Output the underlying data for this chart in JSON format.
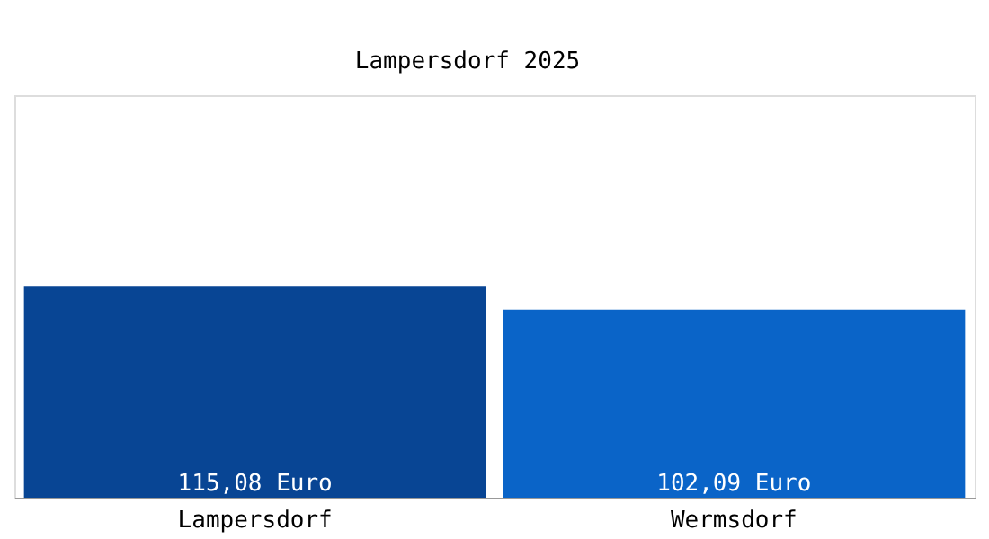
{
  "chart_data": {
    "type": "bar",
    "title": "Lampersdorf 2025",
    "categories": [
      "Lampersdorf",
      "Wermsdorf"
    ],
    "values": [
      115.08,
      102.09
    ],
    "colors": [
      "#084594",
      "#0a64c8"
    ],
    "value_labels": [
      "115,08 Euro",
      "102,09 Euro"
    ]
  }
}
